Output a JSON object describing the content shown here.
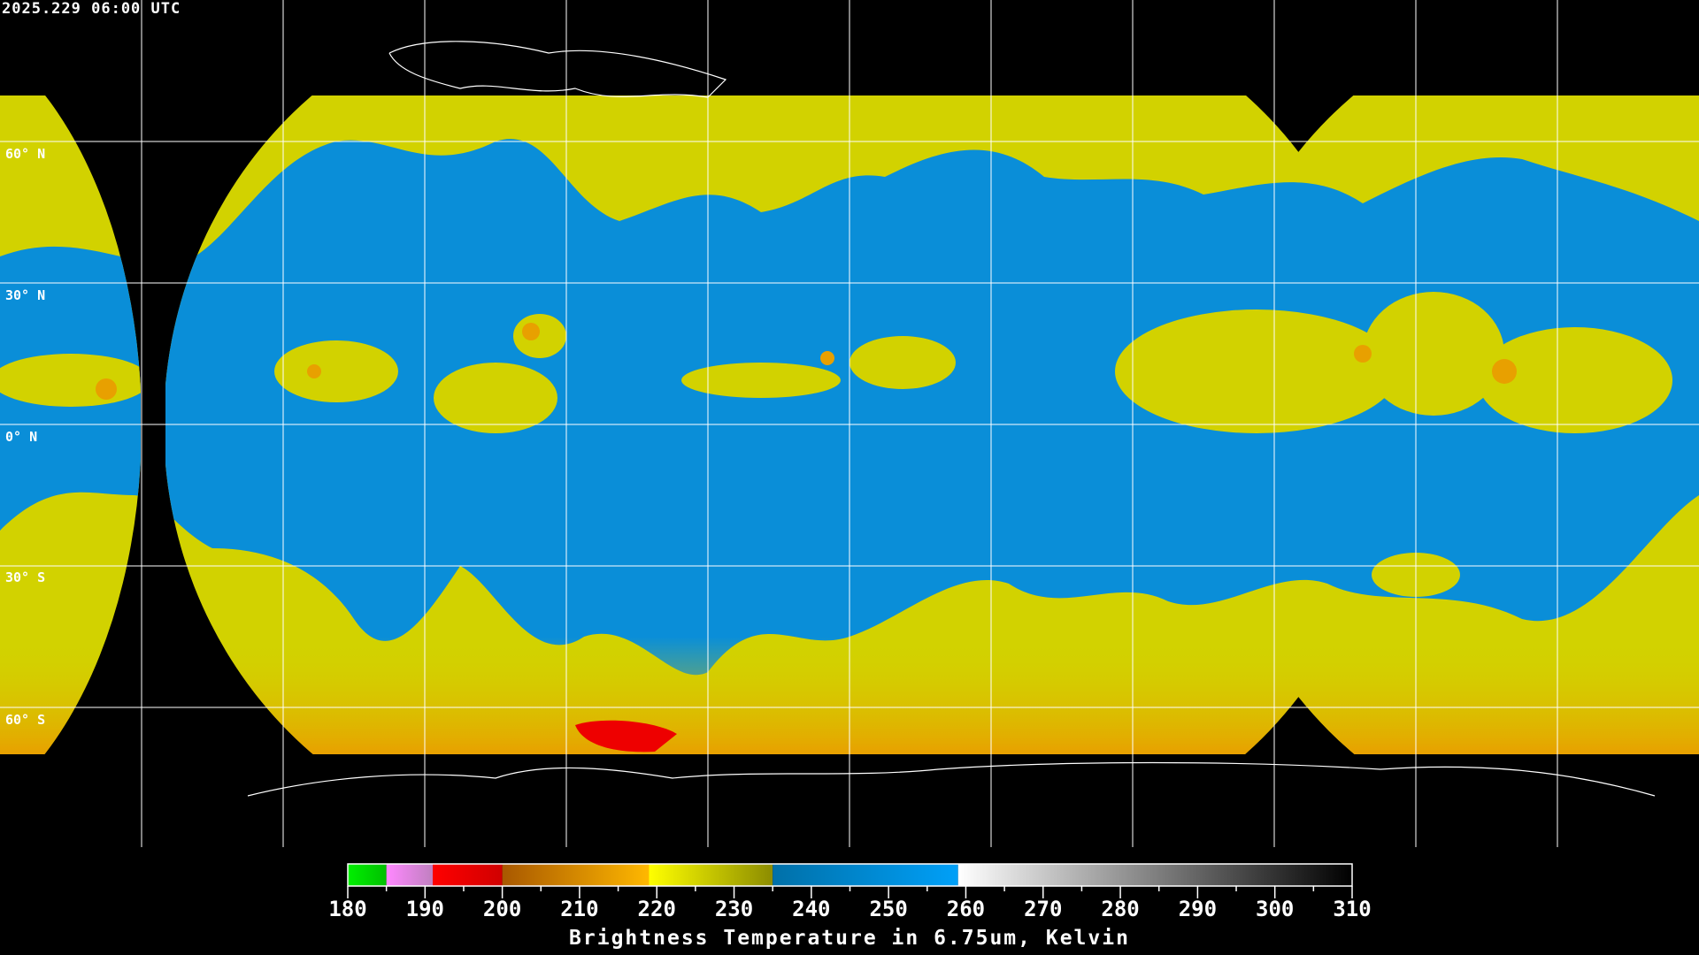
{
  "header": {
    "timestamp": "2025.229 06:00 UTC"
  },
  "map": {
    "lat_labels": [
      "60° N",
      "30° N",
      "0° N",
      "30° S",
      "60° S"
    ],
    "gridline_spacing_degrees": 30,
    "colors": {
      "background": "#000000",
      "cold_cloud": "#d2d200",
      "very_cold": "#e8a000",
      "moist_blue": "#0a8ed8",
      "dry": "#ffffff",
      "coastline": "#000000",
      "grid": "#ffffff"
    }
  },
  "colorbar": {
    "title": "Brightness Temperature in 6.75um, Kelvin",
    "min": 180,
    "max": 310,
    "ticks": [
      "180",
      "190",
      "200",
      "210",
      "220",
      "230",
      "240",
      "250",
      "260",
      "270",
      "280",
      "290",
      "300",
      "310"
    ],
    "segments": [
      {
        "from": 180,
        "to": 185,
        "start": "#00f000",
        "end": "#00c000"
      },
      {
        "from": 185,
        "to": 191,
        "start": "#ff88ff",
        "end": "#c080c0"
      },
      {
        "from": 191,
        "to": 200,
        "start": "#ff0000",
        "end": "#d00000"
      },
      {
        "from": 200,
        "to": 219,
        "start": "#a85800",
        "end": "#ffb800"
      },
      {
        "from": 219,
        "to": 235,
        "start": "#ffff00",
        "end": "#8c8c00"
      },
      {
        "from": 235,
        "to": 259,
        "start": "#0070a8",
        "end": "#00a0f8"
      },
      {
        "from": 259,
        "to": 310,
        "start": "#ffffff",
        "end": "#000000"
      }
    ]
  }
}
